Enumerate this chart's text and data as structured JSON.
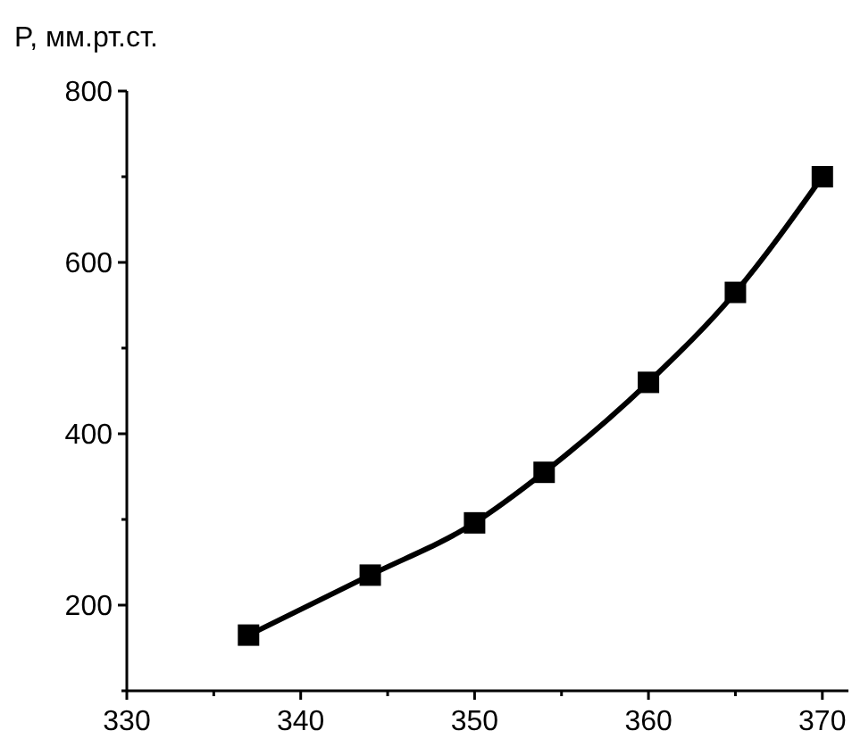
{
  "chart_data": {
    "type": "line",
    "ylabel": "P, мм.рт.ст.",
    "x": [
      337,
      344,
      350,
      354,
      360,
      365,
      370
    ],
    "series": [
      {
        "color": "#000000",
        "values": [
          165,
          235,
          296,
          355,
          460,
          565,
          700
        ]
      }
    ],
    "xlim": [
      330,
      371.5
    ],
    "ylim": [
      100,
      800
    ],
    "xticks": [
      330,
      {
        "value": 335,
        "label": null
      },
      340,
      {
        "value": 345,
        "label": null
      },
      350,
      {
        "value": 355,
        "label": null
      },
      360,
      {
        "value": 365,
        "label": null
      },
      370
    ],
    "yticks": [
      {
        "value": 100,
        "label": null
      },
      200,
      {
        "value": 300,
        "label": null
      },
      400,
      {
        "value": 500,
        "label": null
      },
      600,
      {
        "value": 700,
        "label": null
      },
      800
    ],
    "grid": false,
    "marker": "square",
    "line_style": "solid"
  }
}
